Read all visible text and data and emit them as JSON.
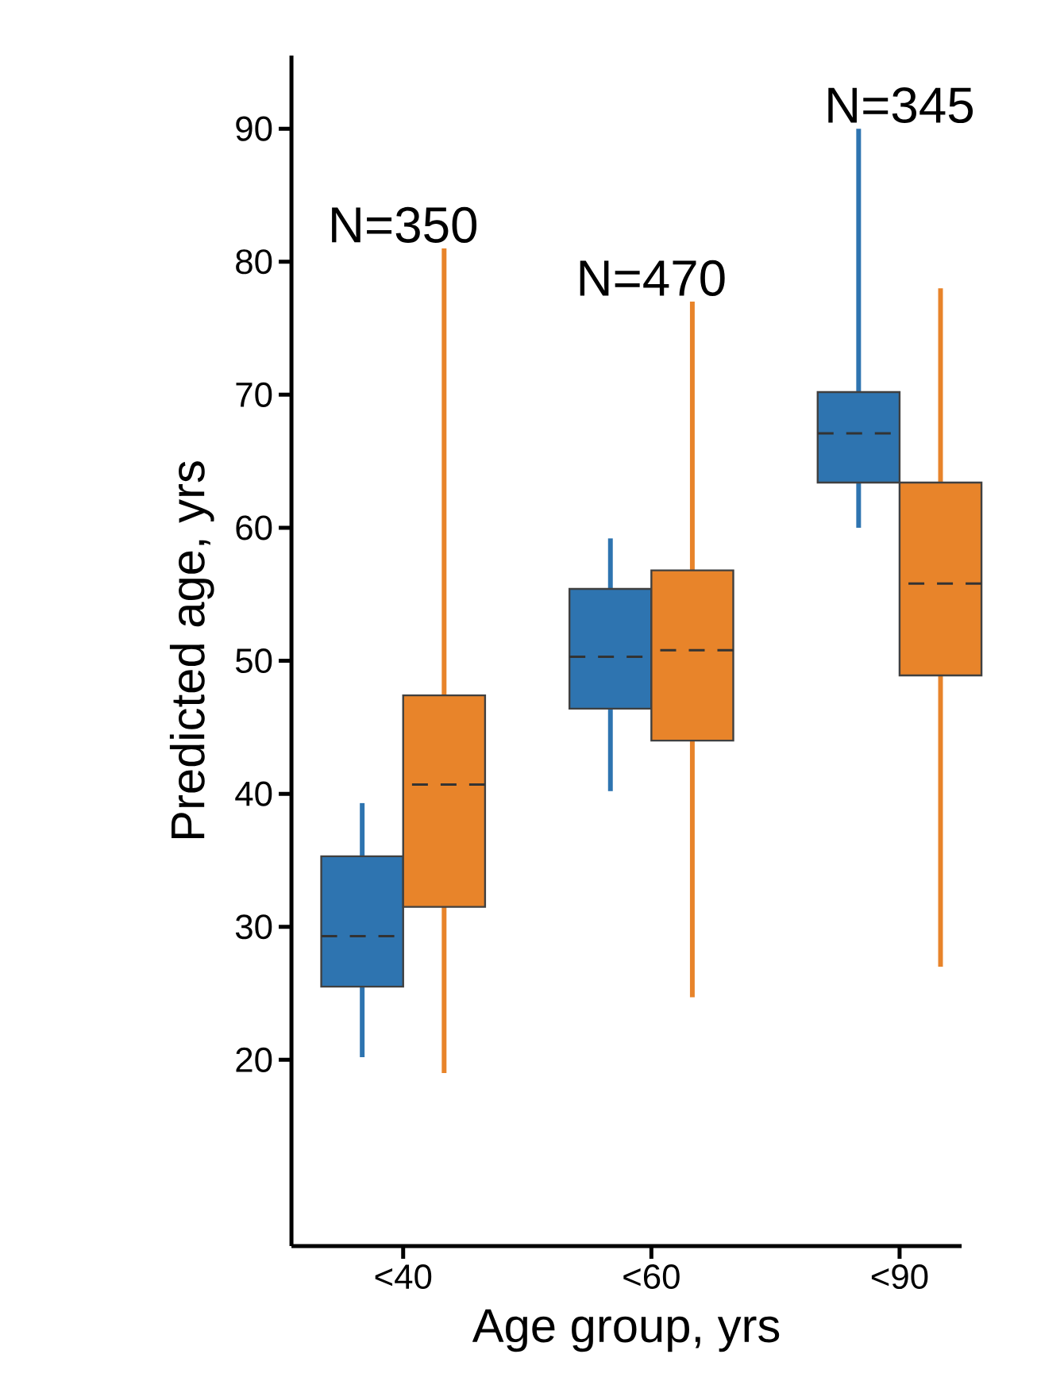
{
  "chart_data": {
    "type": "box",
    "xlabel": "Age group, yrs",
    "ylabel": "Predicted age, yrs",
    "categories": [
      "<40",
      "<60",
      "<90"
    ],
    "ylim": [
      6,
      95.5
    ],
    "yticks": [
      20,
      30,
      40,
      50,
      60,
      70,
      80,
      90
    ],
    "annotations": [
      "N=350",
      "N=470",
      "N=345"
    ],
    "series": [
      {
        "color": "#2e74b0",
        "boxes": [
          {
            "low": 20.2,
            "q1": 25.5,
            "median": 29.3,
            "q3": 35.3,
            "high": 39.3
          },
          {
            "low": 40.2,
            "q1": 46.4,
            "median": 50.3,
            "q3": 55.4,
            "high": 59.2
          },
          {
            "low": 60,
            "q1": 63.4,
            "median": 67.1,
            "q3": 70.2,
            "high": 90
          }
        ]
      },
      {
        "color": "#e8842a",
        "boxes": [
          {
            "low": 19,
            "q1": 31.5,
            "median": 40.7,
            "q3": 47.4,
            "high": 81
          },
          {
            "low": 24.7,
            "q1": 44,
            "median": 50.8,
            "q3": 56.8,
            "high": 77
          },
          {
            "low": 27,
            "q1": 48.9,
            "median": 55.8,
            "q3": 63.4,
            "high": 78
          }
        ]
      }
    ]
  }
}
